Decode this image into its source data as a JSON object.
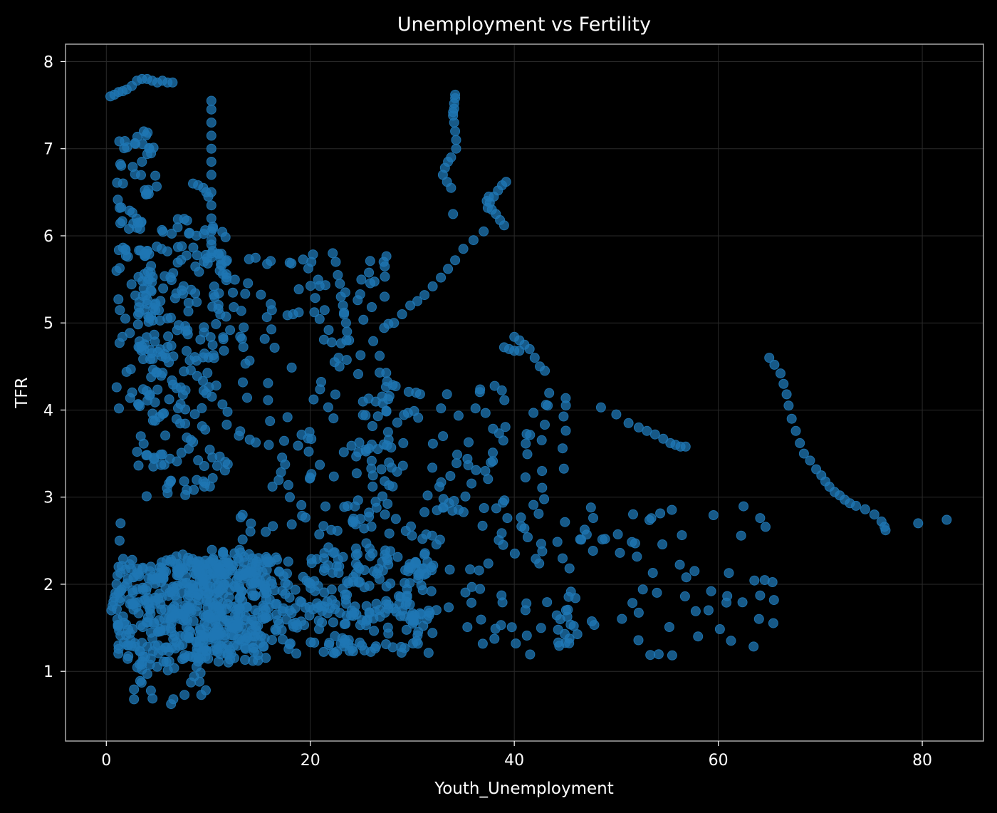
{
  "chart_data": {
    "type": "scatter",
    "title": "Unemployment vs Fertility",
    "xlabel": "Youth_Unemployment",
    "ylabel": "TFR",
    "xlim": [
      -4,
      86
    ],
    "ylim": [
      0.2,
      8.2
    ],
    "xticks": [
      0,
      20,
      40,
      60,
      80
    ],
    "yticks": [
      1,
      2,
      3,
      4,
      5,
      6,
      7,
      8
    ],
    "grid": true,
    "legend": "none",
    "colors": {
      "background": "#000000",
      "points": "#1f77b4",
      "text": "#ffffff",
      "frame": "#a8a8a8",
      "grid": "#2a2a2a"
    },
    "point_groups": [
      {
        "x": [
          1,
          16
        ],
        "y": [
          1.1,
          2.3
        ],
        "count": 420
      },
      {
        "x": [
          6,
          32
        ],
        "y": [
          1.2,
          2.4
        ],
        "count": 380
      },
      {
        "x": [
          3,
          12
        ],
        "y": [
          3,
          6.2
        ],
        "count": 240
      },
      {
        "x": [
          1,
          5
        ],
        "y": [
          4,
          7.2
        ],
        "count": 90
      },
      {
        "x": [
          12,
          28
        ],
        "y": [
          2.2,
          5.8
        ],
        "count": 170
      },
      {
        "x": [
          24,
          46
        ],
        "y": [
          1.3,
          4.3
        ],
        "count": 170
      },
      {
        "x": [
          40,
          66
        ],
        "y": [
          1.15,
          2.9
        ],
        "count": 80
      },
      {
        "x": [
          2,
          10
        ],
        "y": [
          0.6,
          1.1
        ],
        "count": 25
      }
    ],
    "series": [
      {
        "x": [
          0.4,
          0.8,
          1.2,
          1.6,
          2.0,
          2.5,
          3.0,
          3.5,
          4.0,
          4.5,
          5.0,
          5.5,
          6.0,
          6.5
        ],
        "y": [
          7.6,
          7.62,
          7.65,
          7.66,
          7.68,
          7.72,
          7.78,
          7.8,
          7.8,
          7.78,
          7.76,
          7.78,
          7.76,
          7.76
        ]
      },
      {
        "x": [
          10.3,
          10.3,
          10.3,
          10.3,
          10.3,
          10.3,
          10.3,
          10.3,
          10.3,
          10.3,
          10.3,
          10.3,
          10.3,
          10.3,
          10.3
        ],
        "y": [
          7.55,
          7.45,
          7.3,
          7.15,
          7.0,
          6.85,
          6.7,
          6.5,
          6.35,
          6.2,
          6.05,
          5.95,
          5.9,
          5.8,
          5.75
        ]
      },
      {
        "x": [
          34.2,
          34.2,
          34.1,
          34.1,
          34.0,
          34.0,
          34.1,
          34.2,
          34.3,
          34.3,
          33.8,
          33.5,
          33.2,
          33.0,
          33.4,
          33.8,
          34.0
        ],
        "y": [
          7.62,
          7.58,
          7.52,
          7.46,
          7.42,
          7.38,
          7.3,
          7.2,
          7.1,
          7.0,
          6.9,
          6.85,
          6.78,
          6.7,
          6.62,
          6.55,
          6.25
        ]
      },
      {
        "x": [
          39.2,
          38.8,
          38.4,
          38.0,
          37.6,
          37.4,
          37.3,
          37.5,
          37.8,
          38.2,
          38.6,
          39.0
        ],
        "y": [
          6.62,
          6.58,
          6.52,
          6.45,
          6.38,
          6.32,
          6.4,
          6.45,
          6.3,
          6.25,
          6.18,
          6.12
        ]
      },
      {
        "x": [
          37.0,
          36.0,
          35.0,
          34.2,
          33.5,
          32.8,
          32.0,
          31.2,
          30.5,
          29.8,
          29.0,
          28.2
        ],
        "y": [
          6.05,
          5.95,
          5.85,
          5.72,
          5.62,
          5.52,
          5.42,
          5.32,
          5.25,
          5.2,
          5.1,
          5.0
        ]
      },
      {
        "x": [
          65.0,
          65.5,
          66.1,
          66.4,
          66.7,
          66.9,
          67.2,
          67.6,
          68.0,
          68.4,
          69.0,
          69.6,
          70.1,
          70.5,
          70.9,
          71.4,
          71.9,
          72.4,
          72.9,
          73.5,
          74.4,
          75.3,
          76.0,
          76.3,
          76.4,
          79.6,
          82.4
        ],
        "y": [
          4.6,
          4.52,
          4.42,
          4.3,
          4.18,
          4.05,
          3.9,
          3.76,
          3.62,
          3.5,
          3.42,
          3.32,
          3.25,
          3.18,
          3.12,
          3.06,
          3.02,
          2.97,
          2.93,
          2.9,
          2.86,
          2.8,
          2.72,
          2.66,
          2.62,
          2.7,
          2.74
        ]
      },
      {
        "x": [
          48.5,
          50.0,
          51.2,
          52.2,
          53.0,
          53.8,
          54.6,
          55.3,
          55.8,
          56.3,
          56.8
        ],
        "y": [
          4.03,
          3.95,
          3.85,
          3.8,
          3.76,
          3.72,
          3.67,
          3.62,
          3.6,
          3.58,
          3.58
        ]
      },
      {
        "x": [
          40.0,
          40.5,
          41.0,
          41.5,
          42.0,
          42.5,
          43.0
        ],
        "y": [
          4.84,
          4.8,
          4.75,
          4.7,
          4.6,
          4.5,
          4.45
        ]
      },
      {
        "x": [
          39.0,
          39.5,
          40.0,
          40.5
        ],
        "y": [
          4.72,
          4.7,
          4.68,
          4.68
        ]
      },
      {
        "x": [
          22.2,
          22.5,
          22.7,
          22.9,
          23.0,
          23.2,
          23.3,
          23.5,
          23.6,
          23.8
        ],
        "y": [
          5.8,
          5.7,
          5.55,
          5.45,
          5.3,
          5.2,
          5.1,
          5.0,
          4.9,
          4.8
        ]
      },
      {
        "x": [
          0.5,
          0.6,
          0.7,
          0.8,
          0.9,
          1.0,
          1.1,
          1.2,
          1.3,
          1.4
        ],
        "y": [
          1.7,
          1.75,
          1.8,
          1.85,
          1.9,
          2.0,
          2.1,
          2.2,
          2.5,
          2.7
        ]
      },
      {
        "x": [
          8.5,
          9.0,
          9.5,
          9.8,
          10.0
        ],
        "y": [
          6.6,
          6.58,
          6.55,
          6.5,
          6.45
        ]
      }
    ]
  }
}
